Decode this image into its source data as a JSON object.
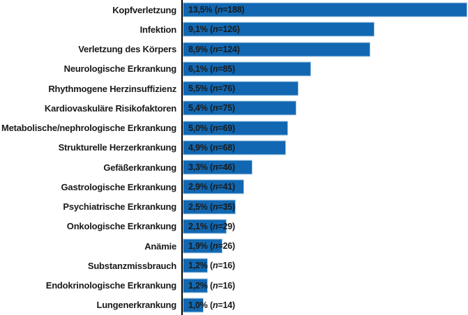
{
  "chart_data": {
    "type": "bar",
    "orientation": "horizontal",
    "title": "",
    "xlabel": "",
    "ylabel": "",
    "xlim": [
      0,
      13.5
    ],
    "grid": false,
    "legend": "none",
    "categories": [
      "Kopfverletzung",
      "Infektion",
      "Verletzung des Körpers",
      "Neurologische Erkrankung",
      "Rhythmogene Herzinsuffizienz",
      "Kardiovaskuläre Risikofaktoren",
      "Metabolische/nephrologische Erkrankung",
      "Strukturelle Herzerkrankung",
      "Gefäßerkrankung",
      "Gastrologische Erkrankung",
      "Psychiatrische Erkrankung",
      "Onkologische Erkrankung",
      "Anämie",
      "Substanzmissbrauch",
      "Endokrinologische Erkrankung",
      "Lungenerkrankung"
    ],
    "values": [
      13.5,
      9.1,
      8.9,
      6.1,
      5.5,
      5.4,
      5.0,
      4.9,
      3.3,
      2.9,
      2.5,
      2.1,
      1.9,
      1.2,
      1.2,
      1.0
    ],
    "counts": [
      188,
      126,
      124,
      85,
      76,
      75,
      69,
      68,
      46,
      41,
      35,
      29,
      26,
      16,
      16,
      14
    ],
    "value_labels": [
      "13,5% (n=188)",
      "9,1% (n=126)",
      "8,9% (n=124)",
      "6,1% (n=85)",
      "5,5% (n=76)",
      "5,4% (n=75)",
      "5,0% (n=69)",
      "4,9% (n=68)",
      "3,3% (n=46)",
      "2,9% (n=41)",
      "2,5% (n=35)",
      "2,1% (n=29)",
      "1,9% (n=26)",
      "1,2% (n=16)",
      "1,2% (n=16)",
      "1,0% (n=14)"
    ]
  },
  "colors": {
    "bar_fill": "#1167B1",
    "bar_border": "#A9CCE9",
    "axis": "#000000",
    "text": "#1A1A1A"
  }
}
